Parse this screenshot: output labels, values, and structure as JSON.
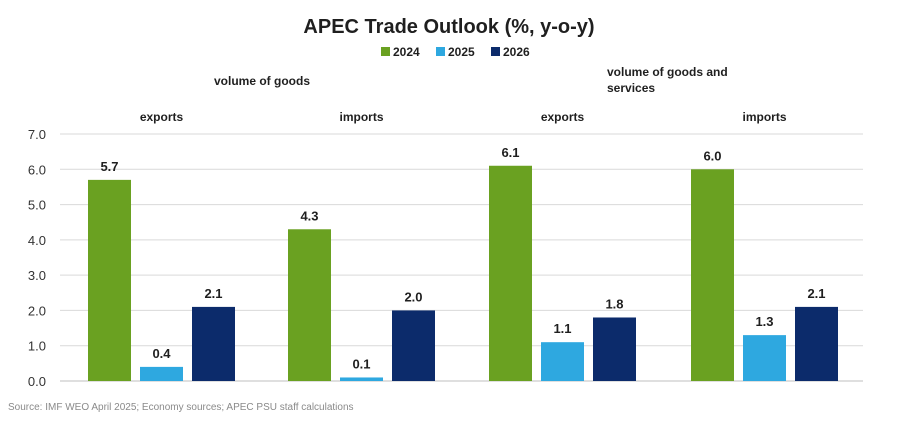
{
  "chart_data": {
    "type": "bar",
    "title": "APEC Trade Outlook (%, y-o-y)",
    "groups": [
      {
        "label": "volume of goods",
        "categories": [
          "exports",
          "imports"
        ]
      },
      {
        "label": "volume of goods and services",
        "categories": [
          "exports",
          "imports"
        ]
      }
    ],
    "categories": [
      "exports",
      "imports",
      "exports",
      "imports"
    ],
    "series": [
      {
        "name": "2024",
        "color": "#6aa121",
        "values": [
          5.7,
          4.3,
          6.1,
          6.0
        ]
      },
      {
        "name": "2025",
        "color": "#2ea8e0",
        "values": [
          0.4,
          0.1,
          1.1,
          1.3
        ]
      },
      {
        "name": "2026",
        "color": "#0c2b6b",
        "values": [
          2.1,
          2.0,
          1.8,
          2.1
        ]
      }
    ],
    "ylim": [
      0,
      7
    ],
    "yticks": [
      "0.0",
      "1.0",
      "2.0",
      "3.0",
      "4.0",
      "5.0",
      "6.0",
      "7.0"
    ],
    "grid": true,
    "legend_position": "top-center",
    "xlabel": "",
    "ylabel": ""
  },
  "source": "Source: IMF WEO April 2025; Economy sources; APEC PSU staff calculations"
}
